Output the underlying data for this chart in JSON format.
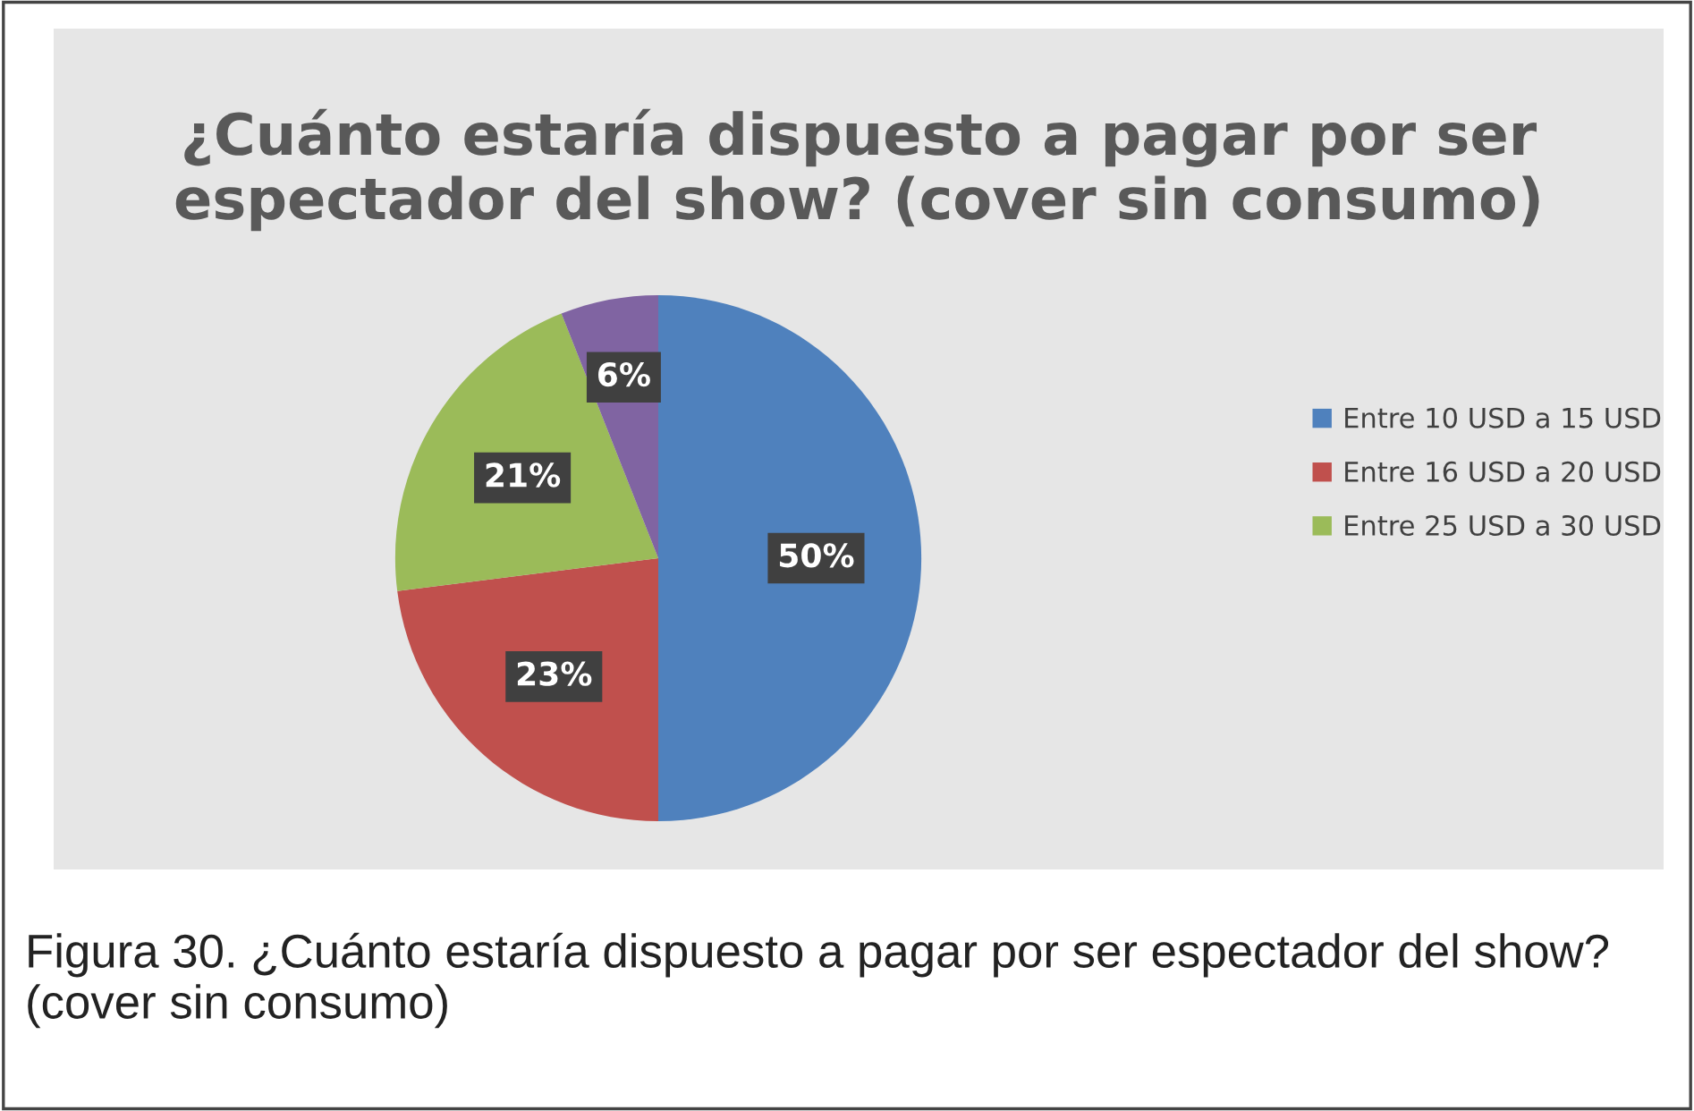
{
  "chart_data": {
    "type": "pie",
    "title": "¿Cuánto estaría dispuesto a pagar por ser espectador del show? (cover sin consumo)",
    "categories": [
      "Entre 10 USD a 15 USD",
      "Entre 16 USD a 20 USD",
      "Entre 25 USD a 30 USD",
      null
    ],
    "values": [
      50,
      23,
      21,
      6
    ],
    "value_labels": [
      "50%",
      "23%",
      "21%",
      "6%"
    ],
    "colors": [
      "#4f81bd",
      "#c0504d",
      "#9bbb59",
      "#8064a2"
    ],
    "legend": "right",
    "annotations": [
      "Figura 30. ¿Cuánto estaría dispuesto a pagar por ser espectador del show? (cover sin consumo)"
    ]
  }
}
